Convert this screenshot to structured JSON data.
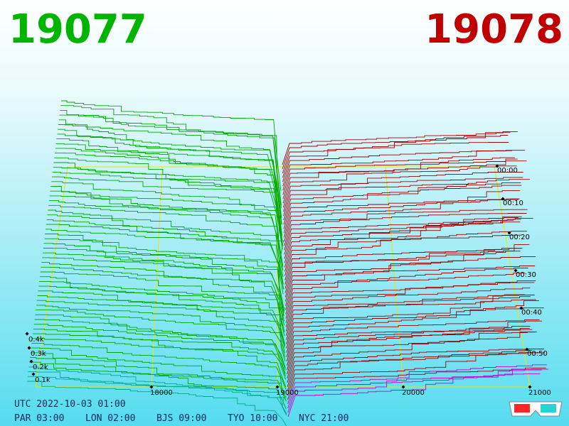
{
  "header": {
    "bid": "19077",
    "ask": "19078"
  },
  "axis": {
    "price_ticks": [
      "18000",
      "19000",
      "20000",
      "21000"
    ],
    "time_ticks": [
      "00:00",
      "00:10",
      "00:20",
      "00:30",
      "00:40",
      "00:50"
    ],
    "depth_ticks": [
      "0.4k",
      "0.3k",
      "0.2k",
      "0.1k"
    ]
  },
  "footer": {
    "utc": "UTC 2022-10-03 01:00",
    "zones": [
      "PAR 03:00",
      "LON 02:00",
      "BJS 09:00",
      "TYO 10:00",
      "NYC 21:00"
    ]
  }
}
